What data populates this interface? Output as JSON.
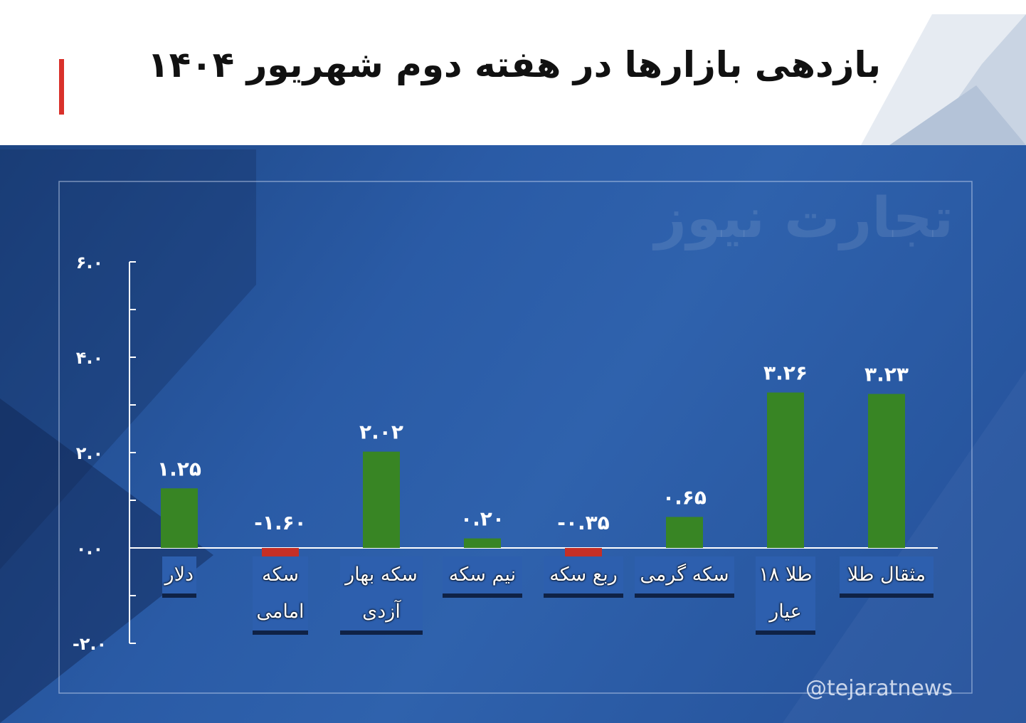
{
  "title": "بازدهی بازارها در هفته دوم شهریور ۱۴۰۴",
  "watermark": {
    "logo_text": "تجارت نیوز",
    "handle": "@tejaratnews"
  },
  "colors": {
    "positive": "#388524",
    "negative": "#c52f26",
    "accent": "#d9312b",
    "panel": "#2a5ba6"
  },
  "chart_data": {
    "type": "bar",
    "title": "",
    "xlabel": "",
    "ylabel": "",
    "ylim": [
      -2.0,
      6.0
    ],
    "y_ticks": [
      -2.0,
      0.0,
      2.0,
      4.0,
      6.0
    ],
    "y_tick_labels": [
      "-۲.۰",
      "۰.۰",
      "۲.۰",
      "۴.۰",
      "۶.۰"
    ],
    "grid": false,
    "legend": "none",
    "categories": [
      "دلار",
      "سکه امامی",
      "سکه بهار آزدی",
      "نیم سکه",
      "ربع سکه",
      "سکه گرمی",
      "طلا ۱۸ عیار",
      "مثقال طلا"
    ],
    "category_lines": [
      [
        "دلار"
      ],
      [
        "سکه",
        "امامی"
      ],
      [
        "سکه بهار",
        "آزدی"
      ],
      [
        "نیم سکه"
      ],
      [
        "ربع سکه"
      ],
      [
        "سکه گرمی"
      ],
      [
        "طلا ۱۸",
        "عیار"
      ],
      [
        "مثقال طلا"
      ]
    ],
    "values": [
      1.25,
      -1.6,
      2.02,
      0.2,
      -0.35,
      0.65,
      3.26,
      3.23
    ],
    "value_labels": [
      "۱.۲۵",
      "-۱.۶۰",
      "۲.۰۲",
      "۰.۲۰",
      "-۰.۳۵",
      "۰.۶۵",
      "۳.۲۶",
      "۳.۲۳"
    ]
  }
}
